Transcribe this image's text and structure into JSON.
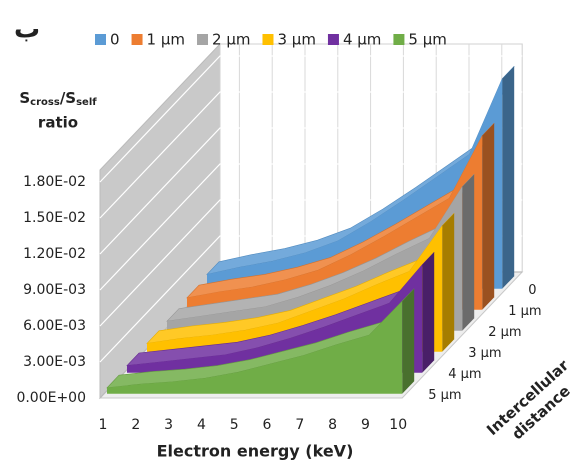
{
  "panel_label": "ب",
  "chart_data": {
    "type": "area3d",
    "y_label": [
      "S",
      "cross",
      "/S",
      "self",
      "ratio"
    ],
    "x_label": "Electron energy (keV)",
    "z_label": [
      "Intercellular",
      "distance"
    ],
    "categories": [
      "1",
      "2",
      "3",
      "4",
      "5",
      "6",
      "7",
      "8",
      "9",
      "10"
    ],
    "ylim": [
      0,
      0.019
    ],
    "yticks": [
      {
        "value": 0,
        "label": "0.00E+00"
      },
      {
        "value": 0.003,
        "label": "3.00E-03"
      },
      {
        "value": 0.006,
        "label": "6.00E-03"
      },
      {
        "value": 0.009,
        "label": "9.00E-03"
      },
      {
        "value": 0.012,
        "label": "1.20E-02"
      },
      {
        "value": 0.015,
        "label": "1.50E-02"
      },
      {
        "value": 0.018,
        "label": "1.80E-02"
      }
    ],
    "grid": true,
    "legend": "top",
    "series": [
      {
        "name": "0",
        "color": "#5b9bd5",
        "values": [
          0.0012,
          0.0018,
          0.0023,
          0.003,
          0.004,
          0.0056,
          0.0074,
          0.0093,
          0.0112,
          0.0175
        ]
      },
      {
        "name": "1 µm",
        "color": "#ed7d31",
        "values": [
          0.001,
          0.0015,
          0.0019,
          0.0025,
          0.0033,
          0.0046,
          0.0061,
          0.0077,
          0.0093,
          0.0145
        ]
      },
      {
        "name": "2 µm",
        "color": "#a5a5a5",
        "values": [
          0.0008,
          0.0012,
          0.0016,
          0.002,
          0.0028,
          0.0038,
          0.005,
          0.0064,
          0.0077,
          0.012
        ]
      },
      {
        "name": "3 µm",
        "color": "#ffc000",
        "values": [
          0.0007,
          0.0011,
          0.0014,
          0.0018,
          0.0024,
          0.0034,
          0.0044,
          0.0056,
          0.0067,
          0.0105
        ]
      },
      {
        "name": "4 µm",
        "color": "#7030a0",
        "values": [
          0.0006,
          0.0009,
          0.0012,
          0.0015,
          0.0021,
          0.0029,
          0.0038,
          0.0048,
          0.0058,
          0.009
        ]
      },
      {
        "name": "5 µm",
        "color": "#70ad47",
        "values": [
          0.0005,
          0.0008,
          0.001,
          0.0013,
          0.0018,
          0.0025,
          0.0032,
          0.0041,
          0.0049,
          0.0077
        ]
      }
    ]
  }
}
